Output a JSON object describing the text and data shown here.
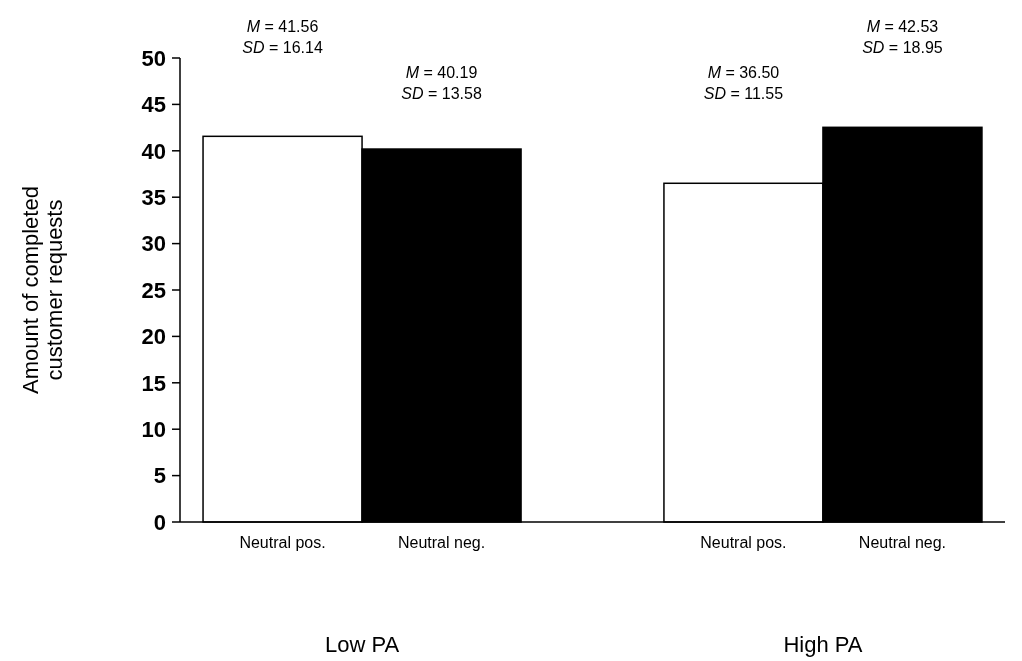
{
  "chart_data": {
    "type": "bar",
    "ylabel": "Amount of completed customer requests",
    "categories": [
      "Low PA",
      "High PA"
    ],
    "series": [
      {
        "name": "Neutral pos.",
        "color": "#ffffff",
        "values": [
          41.56,
          36.5
        ]
      },
      {
        "name": "Neutral neg.",
        "color": "#000000",
        "values": [
          40.19,
          42.53
        ]
      }
    ],
    "ylim": [
      0,
      50
    ],
    "yticks": [
      0,
      5,
      10,
      15,
      20,
      25,
      30,
      35,
      40,
      45,
      50
    ],
    "annotations": [
      "M = 41.56\nSD = 16.14",
      "M = 40.19\nSD = 13.58",
      "M = 36.50\nSD = 11.55",
      "M = 42.53\nSD = 18.95"
    ]
  }
}
